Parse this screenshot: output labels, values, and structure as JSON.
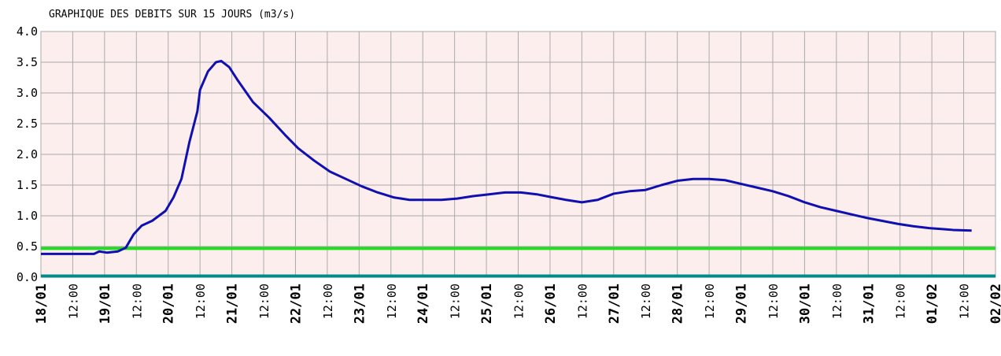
{
  "chart_data": {
    "type": "line",
    "title": "GRAPHIQUE DES DEBITS SUR 15 JOURS (m3/s)",
    "xlim": [
      0,
      360
    ],
    "xticks": [
      {
        "value": 0,
        "label": "18/01"
      },
      {
        "value": 12,
        "label": "12:00"
      },
      {
        "value": 24,
        "label": "19/01"
      },
      {
        "value": 36,
        "label": "12:00"
      },
      {
        "value": 48,
        "label": "20/01"
      },
      {
        "value": 60,
        "label": "12:00"
      },
      {
        "value": 72,
        "label": "21/01"
      },
      {
        "value": 84,
        "label": "12:00"
      },
      {
        "value": 96,
        "label": "22/01"
      },
      {
        "value": 108,
        "label": "12:00"
      },
      {
        "value": 120,
        "label": "23/01"
      },
      {
        "value": 132,
        "label": "12:00"
      },
      {
        "value": 144,
        "label": "24/01"
      },
      {
        "value": 156,
        "label": "12:00"
      },
      {
        "value": 168,
        "label": "25/01"
      },
      {
        "value": 180,
        "label": "12:00"
      },
      {
        "value": 192,
        "label": "26/01"
      },
      {
        "value": 204,
        "label": "12:00"
      },
      {
        "value": 216,
        "label": "27/01"
      },
      {
        "value": 228,
        "label": "12:00"
      },
      {
        "value": 240,
        "label": "28/01"
      },
      {
        "value": 252,
        "label": "12:00"
      },
      {
        "value": 264,
        "label": "29/01"
      },
      {
        "value": 276,
        "label": "12:00"
      },
      {
        "value": 288,
        "label": "30/01"
      },
      {
        "value": 300,
        "label": "12:00"
      },
      {
        "value": 312,
        "label": "31/01"
      },
      {
        "value": 324,
        "label": "12:00"
      },
      {
        "value": 336,
        "label": "01/02"
      },
      {
        "value": 348,
        "label": "12:00"
      },
      {
        "value": 360,
        "label": "02/02"
      }
    ],
    "ylim": [
      0,
      4
    ],
    "yticks": [
      {
        "value": 0,
        "label": "0.0"
      },
      0.5,
      {
        "value": 1,
        "label": "1.0"
      },
      1.5,
      {
        "value": 2,
        "label": "2.0"
      },
      2.5,
      {
        "value": 3,
        "label": "3.0"
      },
      3.5,
      {
        "value": 4,
        "label": "4.0"
      }
    ],
    "grid": true,
    "thresholds": [
      {
        "value": 0.47,
        "color": "#22dd22"
      },
      {
        "value": 0.02,
        "color": "#008b8b"
      }
    ],
    "series": [
      {
        "color": "#1010b0",
        "x": [
          0,
          20,
          22,
          25,
          29,
          32,
          35,
          38,
          42,
          47,
          50,
          53,
          56,
          59,
          60,
          63,
          66,
          68,
          71,
          74,
          80,
          86,
          92,
          97,
          103,
          109,
          115,
          121,
          127,
          133,
          139,
          145,
          151,
          157,
          163,
          169,
          175,
          181,
          187,
          193,
          198,
          204,
          210,
          216,
          222,
          228,
          234,
          240,
          246,
          252,
          258,
          264,
          270,
          276,
          282,
          288,
          294,
          300,
          306,
          311,
          317,
          323,
          329,
          335,
          341,
          344,
          351
        ],
        "values": [
          0.38,
          0.38,
          0.42,
          0.4,
          0.42,
          0.48,
          0.7,
          0.84,
          0.92,
          1.08,
          1.3,
          1.6,
          2.2,
          2.7,
          3.05,
          3.35,
          3.5,
          3.52,
          3.42,
          3.22,
          2.85,
          2.6,
          2.32,
          2.1,
          1.9,
          1.72,
          1.6,
          1.48,
          1.38,
          1.3,
          1.26,
          1.26,
          1.26,
          1.28,
          1.32,
          1.35,
          1.38,
          1.38,
          1.35,
          1.3,
          1.26,
          1.22,
          1.26,
          1.36,
          1.4,
          1.42,
          1.5,
          1.57,
          1.6,
          1.6,
          1.58,
          1.52,
          1.46,
          1.4,
          1.32,
          1.22,
          1.14,
          1.08,
          1.02,
          0.97,
          0.92,
          0.87,
          0.83,
          0.8,
          0.78,
          0.77,
          0.76
        ]
      }
    ]
  }
}
